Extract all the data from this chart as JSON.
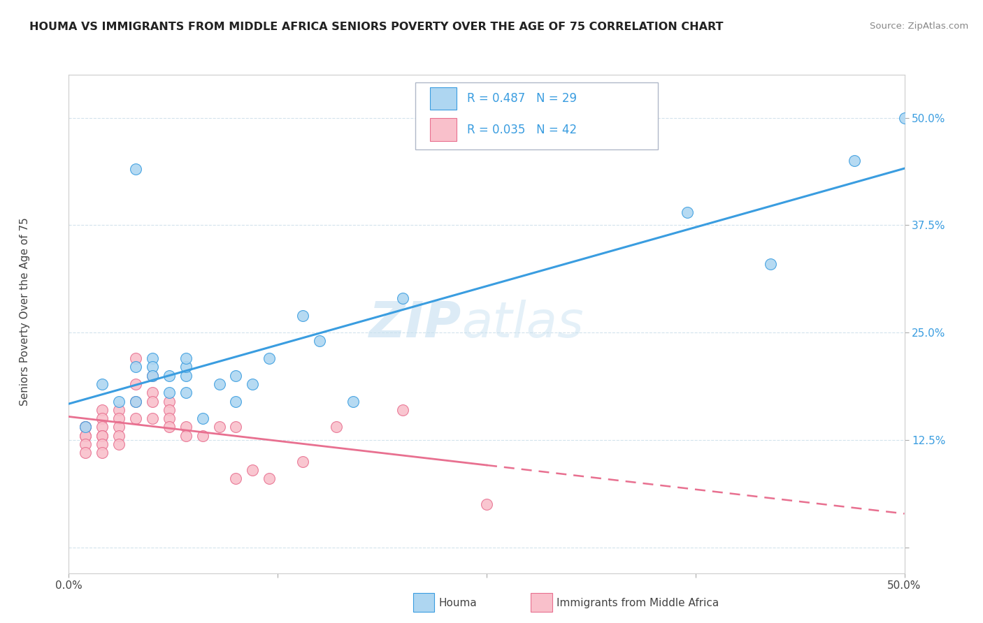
{
  "title": "HOUMA VS IMMIGRANTS FROM MIDDLE AFRICA SENIORS POVERTY OVER THE AGE OF 75 CORRELATION CHART",
  "source": "Source: ZipAtlas.com",
  "ylabel": "Seniors Poverty Over the Age of 75",
  "xlabel_houma": "Houma",
  "xlabel_immigrants": "Immigrants from Middle Africa",
  "xlim": [
    0.0,
    0.5
  ],
  "ylim": [
    -0.03,
    0.55
  ],
  "R_houma": 0.487,
  "N_houma": 29,
  "R_immigrants": 0.035,
  "N_immigrants": 42,
  "houma_color": "#aed6f1",
  "immigrants_color": "#f9c0cb",
  "line_houma_color": "#3a9de0",
  "line_immigrants_color": "#e87090",
  "watermark_zip": "ZIP",
  "watermark_atlas": "atlas",
  "houma_x": [
    0.01,
    0.04,
    0.02,
    0.03,
    0.04,
    0.04,
    0.05,
    0.05,
    0.05,
    0.06,
    0.06,
    0.07,
    0.07,
    0.07,
    0.07,
    0.08,
    0.09,
    0.1,
    0.1,
    0.11,
    0.12,
    0.14,
    0.15,
    0.17,
    0.2,
    0.37,
    0.42,
    0.47,
    0.5
  ],
  "houma_y": [
    0.14,
    0.44,
    0.19,
    0.17,
    0.17,
    0.21,
    0.22,
    0.21,
    0.2,
    0.18,
    0.2,
    0.2,
    0.21,
    0.22,
    0.18,
    0.15,
    0.19,
    0.2,
    0.17,
    0.19,
    0.22,
    0.27,
    0.24,
    0.17,
    0.29,
    0.39,
    0.33,
    0.45,
    0.5
  ],
  "immigrants_x": [
    0.01,
    0.01,
    0.01,
    0.01,
    0.01,
    0.01,
    0.02,
    0.02,
    0.02,
    0.02,
    0.02,
    0.02,
    0.02,
    0.03,
    0.03,
    0.03,
    0.03,
    0.03,
    0.04,
    0.04,
    0.04,
    0.04,
    0.05,
    0.05,
    0.05,
    0.05,
    0.06,
    0.06,
    0.06,
    0.06,
    0.07,
    0.07,
    0.08,
    0.09,
    0.1,
    0.1,
    0.11,
    0.12,
    0.14,
    0.16,
    0.2,
    0.25
  ],
  "immigrants_y": [
    0.14,
    0.14,
    0.13,
    0.13,
    0.12,
    0.11,
    0.16,
    0.15,
    0.14,
    0.13,
    0.13,
    0.12,
    0.11,
    0.16,
    0.15,
    0.14,
    0.13,
    0.12,
    0.22,
    0.19,
    0.17,
    0.15,
    0.2,
    0.18,
    0.17,
    0.15,
    0.17,
    0.16,
    0.15,
    0.14,
    0.14,
    0.13,
    0.13,
    0.14,
    0.14,
    0.08,
    0.09,
    0.08,
    0.1,
    0.14,
    0.16,
    0.05
  ]
}
